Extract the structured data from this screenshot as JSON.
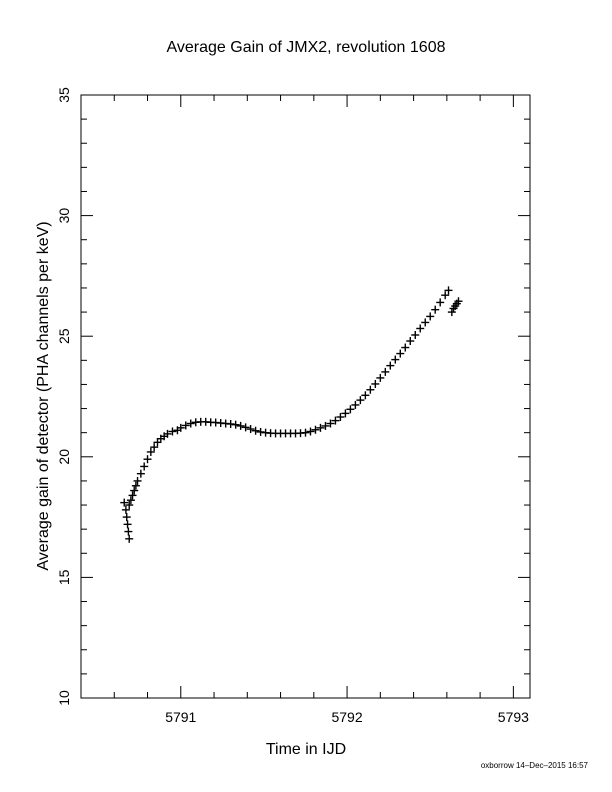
{
  "chart_data": {
    "type": "scatter",
    "title": "Average Gain of JMX2, revolution 1608",
    "xlabel": "Time in IJD",
    "ylabel": "Average gain of detector (PHA channels per keV)",
    "xlim": [
      5790.4,
      5793.1
    ],
    "ylim": [
      10,
      35
    ],
    "xticks": [
      5791,
      5792,
      5793
    ],
    "xtick_labels": [
      "5791",
      "5792",
      "5793"
    ],
    "yticks": [
      10,
      15,
      20,
      25,
      30,
      35
    ],
    "ytick_labels": [
      "10",
      "15",
      "20",
      "25",
      "30",
      "35"
    ],
    "marker": "plus",
    "grid": false,
    "series": [
      {
        "color": "#000000",
        "points": [
          [
            5790.66,
            18.1
          ],
          [
            5790.67,
            17.8
          ],
          [
            5790.675,
            17.5
          ],
          [
            5790.68,
            17.2
          ],
          [
            5790.685,
            16.9
          ],
          [
            5790.69,
            16.6
          ],
          [
            5790.69,
            18.0
          ],
          [
            5790.7,
            18.2
          ],
          [
            5790.71,
            18.4
          ],
          [
            5790.72,
            18.6
          ],
          [
            5790.73,
            18.8
          ],
          [
            5790.74,
            19.0
          ],
          [
            5790.76,
            19.3
          ],
          [
            5790.78,
            19.6
          ],
          [
            5790.8,
            19.9
          ],
          [
            5790.82,
            20.2
          ],
          [
            5790.84,
            20.4
          ],
          [
            5790.86,
            20.6
          ],
          [
            5790.88,
            20.75
          ],
          [
            5790.9,
            20.85
          ],
          [
            5790.92,
            20.95
          ],
          [
            5790.95,
            21.05
          ],
          [
            5790.98,
            21.1
          ],
          [
            5791.0,
            21.2
          ],
          [
            5791.03,
            21.3
          ],
          [
            5791.06,
            21.38
          ],
          [
            5791.09,
            21.43
          ],
          [
            5791.12,
            21.45
          ],
          [
            5791.15,
            21.45
          ],
          [
            5791.18,
            21.43
          ],
          [
            5791.21,
            21.42
          ],
          [
            5791.24,
            21.4
          ],
          [
            5791.27,
            21.38
          ],
          [
            5791.3,
            21.36
          ],
          [
            5791.33,
            21.33
          ],
          [
            5791.36,
            21.28
          ],
          [
            5791.39,
            21.22
          ],
          [
            5791.42,
            21.15
          ],
          [
            5791.45,
            21.08
          ],
          [
            5791.48,
            21.03
          ],
          [
            5791.51,
            21.0
          ],
          [
            5791.54,
            20.98
          ],
          [
            5791.57,
            20.97
          ],
          [
            5791.6,
            20.97
          ],
          [
            5791.63,
            20.97
          ],
          [
            5791.66,
            20.97
          ],
          [
            5791.69,
            20.97
          ],
          [
            5791.72,
            20.98
          ],
          [
            5791.75,
            21.0
          ],
          [
            5791.78,
            21.05
          ],
          [
            5791.81,
            21.12
          ],
          [
            5791.84,
            21.2
          ],
          [
            5791.87,
            21.28
          ],
          [
            5791.9,
            21.38
          ],
          [
            5791.93,
            21.5
          ],
          [
            5791.96,
            21.65
          ],
          [
            5791.99,
            21.8
          ],
          [
            5792.02,
            21.97
          ],
          [
            5792.05,
            22.15
          ],
          [
            5792.08,
            22.35
          ],
          [
            5792.11,
            22.55
          ],
          [
            5792.14,
            22.78
          ],
          [
            5792.17,
            23.02
          ],
          [
            5792.2,
            23.27
          ],
          [
            5792.23,
            23.52
          ],
          [
            5792.26,
            23.78
          ],
          [
            5792.29,
            24.03
          ],
          [
            5792.32,
            24.28
          ],
          [
            5792.35,
            24.53
          ],
          [
            5792.38,
            24.8
          ],
          [
            5792.41,
            25.05
          ],
          [
            5792.44,
            25.32
          ],
          [
            5792.47,
            25.57
          ],
          [
            5792.5,
            25.82
          ],
          [
            5792.53,
            26.1
          ],
          [
            5792.56,
            26.4
          ],
          [
            5792.59,
            26.7
          ],
          [
            5792.61,
            26.9
          ],
          [
            5792.63,
            26.0
          ],
          [
            5792.64,
            26.15
          ],
          [
            5792.65,
            26.25
          ],
          [
            5792.66,
            26.35
          ],
          [
            5792.67,
            26.45
          ]
        ]
      }
    ]
  },
  "footer": {
    "credit": "oxborrow 14–Dec–2015 16:57"
  }
}
